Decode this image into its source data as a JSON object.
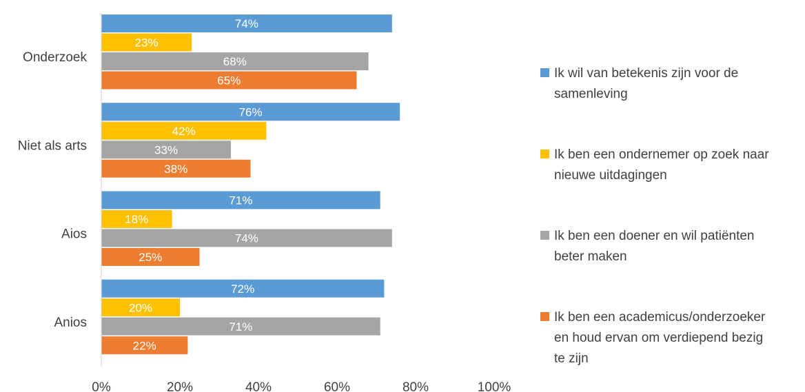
{
  "chart_data": {
    "type": "bar",
    "orientation": "horizontal",
    "categories": [
      "Onderzoek",
      "Niet als arts",
      "Aios",
      "Anios"
    ],
    "series": [
      {
        "name": "Ik wil van betekenis zijn voor de samenleving",
        "name_lines": [
          "Ik wil van betekenis zijn voor de",
          "samenleving"
        ],
        "color": "#5B9BD5",
        "values": [
          74,
          76,
          71,
          72
        ],
        "labels": [
          "74%",
          "76%",
          "71%",
          "72%"
        ]
      },
      {
        "name": "Ik ben een ondernemer op zoek naar nieuwe uitdagingen",
        "name_lines": [
          "Ik ben een ondernemer op zoek naar",
          "nieuwe uitdagingen"
        ],
        "color": "#FFC000",
        "values": [
          23,
          42,
          18,
          20
        ],
        "labels": [
          "23%",
          "42%",
          "18%",
          "20%"
        ]
      },
      {
        "name": "Ik ben een doener en wil patiënten beter maken",
        "name_lines": [
          "Ik ben een doener en wil patiënten",
          "beter maken"
        ],
        "color": "#A5A5A5",
        "values": [
          68,
          33,
          74,
          71
        ],
        "labels": [
          "68%",
          "33%",
          "74%",
          "71%"
        ]
      },
      {
        "name": "Ik ben een academicus/onderzoeker en houd ervan om verdiepend bezig te zijn",
        "name_lines": [
          "Ik ben een academicus/onderzoeker",
          "en houd ervan om verdiepend bezig",
          "te zijn"
        ],
        "color": "#ED7D31",
        "values": [
          65,
          38,
          25,
          22
        ],
        "labels": [
          "65%",
          "38%",
          "25%",
          "22%"
        ]
      }
    ],
    "x_ticks": [
      "0%",
      "20%",
      "40%",
      "60%",
      "80%",
      "100%"
    ],
    "xlim": [
      0,
      100
    ],
    "grid": false,
    "legend_position": "right"
  }
}
